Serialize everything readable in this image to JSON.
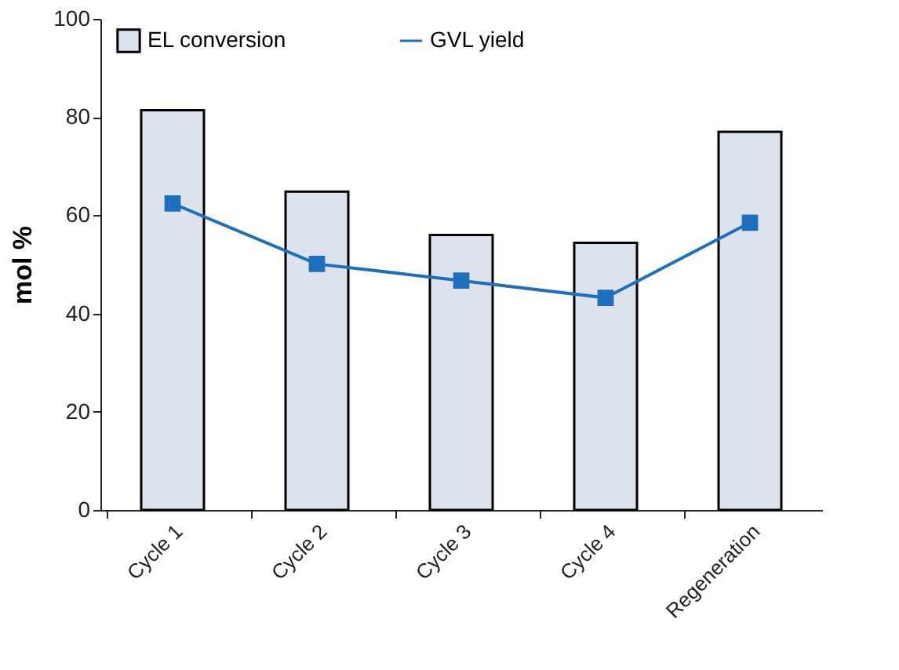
{
  "chart_data": {
    "type": "bar",
    "ylabel": "mol %",
    "categories": [
      "Cycle 1",
      "Cycle 2",
      "Cycle 3",
      "Cycle 4",
      "Regeneration"
    ],
    "series": [
      {
        "name": "EL conversion",
        "color": "#dde3ee",
        "values": [
          81.4,
          64.8,
          56.0,
          54.4,
          77.0
        ]
      },
      {
        "name": "GVL yield",
        "type": "line",
        "color": "#1f6fbf",
        "values": [
          62.4,
          50.1,
          46.7,
          43.2,
          58.5
        ]
      }
    ],
    "ylim": [
      0,
      100
    ],
    "yticks": [
      0,
      20,
      40,
      60,
      80,
      100
    ],
    "grid": false,
    "legend": "top left",
    "marker": "square",
    "line_style": "solid"
  }
}
